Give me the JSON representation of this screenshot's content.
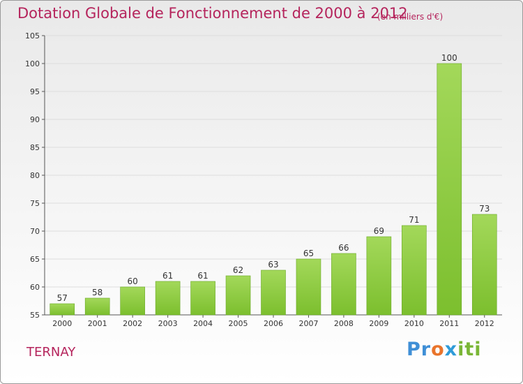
{
  "chart_data": {
    "type": "bar",
    "title": "Dotation Globale de Fonctionnement de 2000 à 2012",
    "subtitle": "(en milliers d'€)",
    "categories": [
      "2000",
      "2001",
      "2002",
      "2003",
      "2004",
      "2005",
      "2006",
      "2007",
      "2008",
      "2009",
      "2010",
      "2011",
      "2012"
    ],
    "values": [
      57,
      58,
      60,
      61,
      61,
      62,
      63,
      65,
      66,
      69,
      71,
      100,
      73
    ],
    "ylim": [
      55,
      105
    ],
    "yticks": [
      55,
      60,
      65,
      70,
      75,
      80,
      85,
      90,
      95,
      100,
      105
    ],
    "grid": true,
    "bar_color": "#7cbf2e",
    "bar_color_light": "#a3d85a"
  },
  "place_name": "TERNAY",
  "logo": {
    "p1": "Pr",
    "p2": "o",
    "p3": "x",
    "p4": "iti"
  }
}
